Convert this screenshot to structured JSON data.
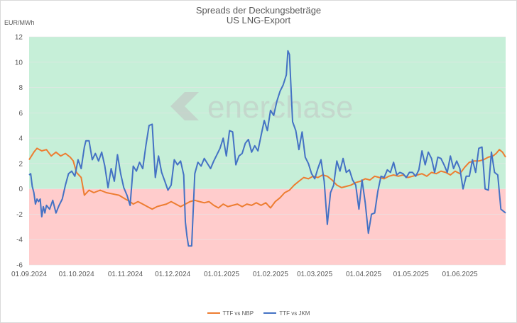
{
  "chart_data": {
    "type": "line",
    "title": "Spreads der Deckungsbeträge",
    "subtitle": "US LNG-Export",
    "ylabel": "EUR/MWh",
    "ylim": [
      -6,
      12
    ],
    "yticks": [
      12,
      10,
      8,
      6,
      4,
      2,
      0,
      -2,
      -4,
      -6
    ],
    "xlim": [
      "2024-09-01",
      "2025-06-30"
    ],
    "xtick_labels": [
      "01.09.2024",
      "01.10.2024",
      "01.11.2024",
      "01.12.2024",
      "01.01.2025",
      "01.02.2025",
      "01.03.2025",
      "01.04.2025",
      "01.05.2025",
      "01.06.2025"
    ],
    "xtick_dates": [
      "2024-09-01",
      "2024-10-01",
      "2024-11-01",
      "2024-12-01",
      "2025-01-01",
      "2025-02-01",
      "2025-03-01",
      "2025-04-01",
      "2025-05-01",
      "2025-06-01"
    ],
    "background_bands": [
      {
        "from": 0,
        "to": 12,
        "color": "#c6efd8"
      },
      {
        "from": -6,
        "to": 0,
        "color": "#ffcccc"
      }
    ],
    "watermark": "enerchase",
    "series": [
      {
        "name": "TTF vs NBP",
        "color": "#ed7d31",
        "points": [
          [
            "2024-09-01",
            2.3
          ],
          [
            "2024-09-04",
            2.9
          ],
          [
            "2024-09-06",
            3.2
          ],
          [
            "2024-09-09",
            3.0
          ],
          [
            "2024-09-12",
            3.1
          ],
          [
            "2024-09-15",
            2.6
          ],
          [
            "2024-09-18",
            2.9
          ],
          [
            "2024-09-21",
            2.6
          ],
          [
            "2024-09-24",
            2.8
          ],
          [
            "2024-09-27",
            2.5
          ],
          [
            "2024-09-29",
            2.2
          ],
          [
            "2024-10-01",
            1.3
          ],
          [
            "2024-10-04",
            0.9
          ],
          [
            "2024-10-06",
            -0.5
          ],
          [
            "2024-10-09",
            -0.1
          ],
          [
            "2024-10-12",
            -0.3
          ],
          [
            "2024-10-16",
            -0.1
          ],
          [
            "2024-10-20",
            -0.3
          ],
          [
            "2024-10-24",
            -0.4
          ],
          [
            "2024-10-28",
            -0.5
          ],
          [
            "2024-11-01",
            -0.8
          ],
          [
            "2024-11-04",
            -1.0
          ],
          [
            "2024-11-06",
            -1.2
          ],
          [
            "2024-11-09",
            -1.0
          ],
          [
            "2024-11-12",
            -1.2
          ],
          [
            "2024-11-15",
            -1.4
          ],
          [
            "2024-11-18",
            -1.6
          ],
          [
            "2024-11-21",
            -1.4
          ],
          [
            "2024-11-24",
            -1.3
          ],
          [
            "2024-11-27",
            -1.2
          ],
          [
            "2024-11-30",
            -1.0
          ],
          [
            "2024-12-03",
            -1.2
          ],
          [
            "2024-12-06",
            -1.4
          ],
          [
            "2024-12-09",
            -1.2
          ],
          [
            "2024-12-12",
            -1.0
          ],
          [
            "2024-12-15",
            -0.9
          ],
          [
            "2024-12-18",
            -1.0
          ],
          [
            "2024-12-21",
            -1.1
          ],
          [
            "2024-12-24",
            -1.0
          ],
          [
            "2024-12-27",
            -1.3
          ],
          [
            "2024-12-30",
            -1.5
          ],
          [
            "2025-01-02",
            -1.2
          ],
          [
            "2025-01-05",
            -1.4
          ],
          [
            "2025-01-08",
            -1.3
          ],
          [
            "2025-01-11",
            -1.2
          ],
          [
            "2025-01-14",
            -1.4
          ],
          [
            "2025-01-17",
            -1.2
          ],
          [
            "2025-01-20",
            -1.3
          ],
          [
            "2025-01-23",
            -1.1
          ],
          [
            "2025-01-26",
            -1.3
          ],
          [
            "2025-01-29",
            -1.1
          ],
          [
            "2025-02-01",
            -1.5
          ],
          [
            "2025-02-04",
            -1.0
          ],
          [
            "2025-02-07",
            -0.7
          ],
          [
            "2025-02-10",
            -0.3
          ],
          [
            "2025-02-13",
            -0.1
          ],
          [
            "2025-02-16",
            0.3
          ],
          [
            "2025-02-19",
            0.6
          ],
          [
            "2025-02-22",
            0.9
          ],
          [
            "2025-02-25",
            0.8
          ],
          [
            "2025-02-28",
            1.0
          ],
          [
            "2025-03-03",
            0.9
          ],
          [
            "2025-03-06",
            1.1
          ],
          [
            "2025-03-09",
            1.0
          ],
          [
            "2025-03-12",
            0.7
          ],
          [
            "2025-03-15",
            0.3
          ],
          [
            "2025-03-18",
            0.1
          ],
          [
            "2025-03-21",
            0.2
          ],
          [
            "2025-03-24",
            0.3
          ],
          [
            "2025-03-27",
            0.5
          ],
          [
            "2025-03-30",
            0.6
          ],
          [
            "2025-04-02",
            0.8
          ],
          [
            "2025-04-05",
            0.7
          ],
          [
            "2025-04-08",
            1.0
          ],
          [
            "2025-04-11",
            0.9
          ],
          [
            "2025-04-14",
            0.8
          ],
          [
            "2025-04-17",
            1.0
          ],
          [
            "2025-04-20",
            1.1
          ],
          [
            "2025-04-23",
            1.0
          ],
          [
            "2025-04-26",
            1.1
          ],
          [
            "2025-04-29",
            0.9
          ],
          [
            "2025-05-02",
            1.0
          ],
          [
            "2025-05-05",
            1.1
          ],
          [
            "2025-05-08",
            1.2
          ],
          [
            "2025-05-11",
            1.0
          ],
          [
            "2025-05-14",
            1.3
          ],
          [
            "2025-05-17",
            1.2
          ],
          [
            "2025-05-20",
            1.4
          ],
          [
            "2025-05-23",
            1.3
          ],
          [
            "2025-05-26",
            1.1
          ],
          [
            "2025-05-29",
            1.4
          ],
          [
            "2025-06-01",
            1.2
          ],
          [
            "2025-06-04",
            1.7
          ],
          [
            "2025-06-07",
            2.1
          ],
          [
            "2025-06-10",
            2.2
          ],
          [
            "2025-06-13",
            2.2
          ],
          [
            "2025-06-16",
            2.3
          ],
          [
            "2025-06-19",
            2.5
          ],
          [
            "2025-06-22",
            2.6
          ],
          [
            "2025-06-24",
            2.8
          ],
          [
            "2025-06-26",
            3.1
          ],
          [
            "2025-06-28",
            2.9
          ],
          [
            "2025-06-30",
            2.5
          ]
        ]
      },
      {
        "name": "TTF vs JKM",
        "color": "#4472c4",
        "points": [
          [
            "2024-09-01",
            1.1
          ],
          [
            "2024-09-02",
            1.2
          ],
          [
            "2024-09-03",
            0.2
          ],
          [
            "2024-09-04",
            -0.3
          ],
          [
            "2024-09-05",
            -1.2
          ],
          [
            "2024-09-06",
            -0.8
          ],
          [
            "2024-09-07",
            -1.0
          ],
          [
            "2024-09-08",
            -0.8
          ],
          [
            "2024-09-09",
            -2.2
          ],
          [
            "2024-09-10",
            -1.4
          ],
          [
            "2024-09-11",
            -1.9
          ],
          [
            "2024-09-12",
            -1.3
          ],
          [
            "2024-09-14",
            -1.6
          ],
          [
            "2024-09-16",
            -0.9
          ],
          [
            "2024-09-18",
            -1.9
          ],
          [
            "2024-09-20",
            -1.3
          ],
          [
            "2024-09-22",
            -0.8
          ],
          [
            "2024-09-24",
            0.3
          ],
          [
            "2024-09-26",
            1.2
          ],
          [
            "2024-09-28",
            1.4
          ],
          [
            "2024-09-30",
            1.0
          ],
          [
            "2024-10-02",
            2.3
          ],
          [
            "2024-10-04",
            1.6
          ],
          [
            "2024-10-06",
            3.3
          ],
          [
            "2024-10-07",
            3.8
          ],
          [
            "2024-10-09",
            3.8
          ],
          [
            "2024-10-11",
            2.3
          ],
          [
            "2024-10-13",
            2.8
          ],
          [
            "2024-10-15",
            2.2
          ],
          [
            "2024-10-17",
            2.9
          ],
          [
            "2024-10-19",
            1.8
          ],
          [
            "2024-10-21",
            0.1
          ],
          [
            "2024-10-23",
            1.6
          ],
          [
            "2024-10-25",
            0.6
          ],
          [
            "2024-10-27",
            2.7
          ],
          [
            "2024-10-29",
            1.2
          ],
          [
            "2024-10-31",
            0.1
          ],
          [
            "2024-11-02",
            -0.5
          ],
          [
            "2024-11-04",
            -1.3
          ],
          [
            "2024-11-06",
            1.8
          ],
          [
            "2024-11-08",
            1.4
          ],
          [
            "2024-11-10",
            2.1
          ],
          [
            "2024-11-12",
            1.6
          ],
          [
            "2024-11-14",
            3.4
          ],
          [
            "2024-11-16",
            5.0
          ],
          [
            "2024-11-18",
            5.1
          ],
          [
            "2024-11-20",
            0.9
          ],
          [
            "2024-11-22",
            2.6
          ],
          [
            "2024-11-24",
            1.3
          ],
          [
            "2024-11-26",
            0.6
          ],
          [
            "2024-11-28",
            -0.1
          ],
          [
            "2024-11-30",
            0.3
          ],
          [
            "2024-12-02",
            2.3
          ],
          [
            "2024-12-04",
            1.9
          ],
          [
            "2024-12-06",
            2.2
          ],
          [
            "2024-12-08",
            1.1
          ],
          [
            "2024-12-09",
            -2.6
          ],
          [
            "2024-12-10",
            -3.7
          ],
          [
            "2024-12-11",
            -4.5
          ],
          [
            "2024-12-13",
            -4.5
          ],
          [
            "2024-12-15",
            1.2
          ],
          [
            "2024-12-17",
            2.1
          ],
          [
            "2024-12-19",
            1.8
          ],
          [
            "2024-12-21",
            2.4
          ],
          [
            "2024-12-23",
            2.0
          ],
          [
            "2024-12-25",
            1.6
          ],
          [
            "2024-12-27",
            2.2
          ],
          [
            "2024-12-29",
            2.7
          ],
          [
            "2024-12-31",
            3.2
          ],
          [
            "2025-01-02",
            4.0
          ],
          [
            "2025-01-04",
            2.6
          ],
          [
            "2025-01-06",
            4.6
          ],
          [
            "2025-01-08",
            4.5
          ],
          [
            "2025-01-10",
            1.9
          ],
          [
            "2025-01-12",
            2.6
          ],
          [
            "2025-01-14",
            2.8
          ],
          [
            "2025-01-16",
            3.6
          ],
          [
            "2025-01-18",
            3.9
          ],
          [
            "2025-01-20",
            2.9
          ],
          [
            "2025-01-22",
            3.4
          ],
          [
            "2025-01-24",
            3.0
          ],
          [
            "2025-01-26",
            4.2
          ],
          [
            "2025-01-28",
            5.4
          ],
          [
            "2025-01-30",
            4.6
          ],
          [
            "2025-02-01",
            6.2
          ],
          [
            "2025-02-03",
            5.8
          ],
          [
            "2025-02-05",
            6.9
          ],
          [
            "2025-02-07",
            7.7
          ],
          [
            "2025-02-09",
            8.2
          ],
          [
            "2025-02-11",
            9.0
          ],
          [
            "2025-02-12",
            10.9
          ],
          [
            "2025-02-13",
            10.6
          ],
          [
            "2025-02-15",
            5.3
          ],
          [
            "2025-02-17",
            4.6
          ],
          [
            "2025-02-19",
            3.1
          ],
          [
            "2025-02-21",
            4.5
          ],
          [
            "2025-02-23",
            2.5
          ],
          [
            "2025-02-25",
            2.0
          ],
          [
            "2025-02-27",
            1.2
          ],
          [
            "2025-03-01",
            0.8
          ],
          [
            "2025-03-03",
            1.6
          ],
          [
            "2025-03-05",
            2.3
          ],
          [
            "2025-03-07",
            0.6
          ],
          [
            "2025-03-09",
            -2.8
          ],
          [
            "2025-03-11",
            -0.3
          ],
          [
            "2025-03-13",
            0.3
          ],
          [
            "2025-03-15",
            2.2
          ],
          [
            "2025-03-17",
            1.4
          ],
          [
            "2025-03-19",
            2.4
          ],
          [
            "2025-03-21",
            1.3
          ],
          [
            "2025-03-23",
            1.5
          ],
          [
            "2025-03-25",
            0.7
          ],
          [
            "2025-03-27",
            0.3
          ],
          [
            "2025-03-29",
            -1.6
          ],
          [
            "2025-03-31",
            0.7
          ],
          [
            "2025-04-02",
            -1.1
          ],
          [
            "2025-04-04",
            -3.5
          ],
          [
            "2025-04-06",
            -2.0
          ],
          [
            "2025-04-08",
            -1.9
          ],
          [
            "2025-04-10",
            -0.2
          ],
          [
            "2025-04-12",
            1.0
          ],
          [
            "2025-04-14",
            0.9
          ],
          [
            "2025-04-16",
            1.5
          ],
          [
            "2025-04-18",
            1.3
          ],
          [
            "2025-04-20",
            2.1
          ],
          [
            "2025-04-22",
            1.1
          ],
          [
            "2025-04-24",
            1.3
          ],
          [
            "2025-04-26",
            1.2
          ],
          [
            "2025-04-28",
            0.9
          ],
          [
            "2025-04-30",
            1.3
          ],
          [
            "2025-05-02",
            1.3
          ],
          [
            "2025-05-04",
            1.0
          ],
          [
            "2025-05-06",
            1.5
          ],
          [
            "2025-05-08",
            3.0
          ],
          [
            "2025-05-10",
            1.9
          ],
          [
            "2025-05-12",
            2.9
          ],
          [
            "2025-05-14",
            2.4
          ],
          [
            "2025-05-16",
            1.3
          ],
          [
            "2025-05-18",
            2.5
          ],
          [
            "2025-05-20",
            2.4
          ],
          [
            "2025-05-22",
            1.9
          ],
          [
            "2025-05-24",
            1.3
          ],
          [
            "2025-05-26",
            2.6
          ],
          [
            "2025-05-28",
            1.6
          ],
          [
            "2025-05-30",
            2.2
          ],
          [
            "2025-06-01",
            1.6
          ],
          [
            "2025-06-03",
            0.0
          ],
          [
            "2025-06-05",
            1.0
          ],
          [
            "2025-06-07",
            1.0
          ],
          [
            "2025-06-09",
            2.3
          ],
          [
            "2025-06-11",
            1.3
          ],
          [
            "2025-06-13",
            3.2
          ],
          [
            "2025-06-15",
            3.3
          ],
          [
            "2025-06-17",
            0.0
          ],
          [
            "2025-06-19",
            -0.1
          ],
          [
            "2025-06-21",
            2.9
          ],
          [
            "2025-06-23",
            1.3
          ],
          [
            "2025-06-25",
            1.1
          ],
          [
            "2025-06-27",
            -1.6
          ],
          [
            "2025-06-30",
            -1.9
          ]
        ]
      }
    ]
  }
}
